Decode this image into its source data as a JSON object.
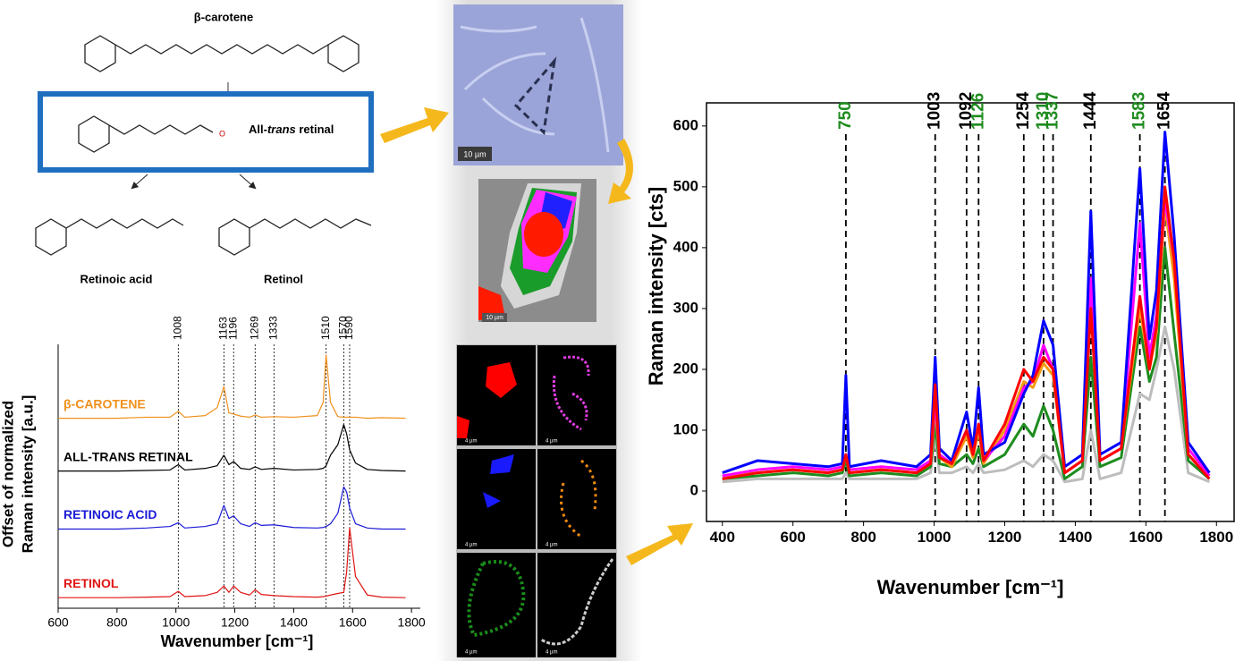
{
  "structures": {
    "beta_carotene": "β-carotene",
    "retinal_prefix": "All-",
    "retinal_italic": "trans",
    "retinal_suffix": " retinal",
    "retinoic_acid": "Retinoic acid",
    "retinol": "Retinol"
  },
  "images": {
    "brightfield_scale": "10 µm",
    "map_scale": "10 µm",
    "panel_scale": "4 µm"
  },
  "chart_data": [
    {
      "type": "line",
      "y_label": [
        "Offset of normalized",
        "Raman intensity [a.u.]"
      ],
      "x_label": "Wavenumber [cm⁻¹]",
      "xlim": [
        600,
        1830
      ],
      "xticks": [
        600,
        800,
        1000,
        1200,
        1400,
        1600,
        1800
      ],
      "ylim": [
        0,
        5
      ],
      "reference_lines": [
        1008,
        1163,
        1196,
        1269,
        1333,
        1510,
        1570,
        1590
      ],
      "x": [
        600,
        700,
        800,
        900,
        980,
        1008,
        1030,
        1100,
        1140,
        1163,
        1180,
        1196,
        1220,
        1250,
        1269,
        1290,
        1333,
        1400,
        1480,
        1500,
        1510,
        1525,
        1550,
        1570,
        1580,
        1590,
        1610,
        1650,
        1700,
        1780
      ],
      "series": [
        {
          "name": "β-CAROTENE",
          "color": "#f0901c",
          "values": [
            3.6,
            3.6,
            3.6,
            3.62,
            3.62,
            3.73,
            3.62,
            3.65,
            3.8,
            4.2,
            3.7,
            3.68,
            3.64,
            3.62,
            3.66,
            3.62,
            3.63,
            3.62,
            3.65,
            3.9,
            4.8,
            3.9,
            3.63,
            3.62,
            3.62,
            3.62,
            3.62,
            3.6,
            3.61,
            3.6
          ]
        },
        {
          "name": "ALL-TRANS RETINAL",
          "color": "#000000",
          "values": [
            2.6,
            2.6,
            2.6,
            2.61,
            2.62,
            2.72,
            2.62,
            2.65,
            2.7,
            2.9,
            2.72,
            2.78,
            2.65,
            2.63,
            2.68,
            2.63,
            2.65,
            2.62,
            2.63,
            2.65,
            2.7,
            2.9,
            3.1,
            3.48,
            3.3,
            3.0,
            2.75,
            2.63,
            2.61,
            2.6
          ]
        },
        {
          "name": "RETINOIC ACID",
          "color": "#1a1ad6",
          "values": [
            1.5,
            1.5,
            1.5,
            1.52,
            1.55,
            1.62,
            1.52,
            1.55,
            1.6,
            1.95,
            1.7,
            1.75,
            1.6,
            1.55,
            1.62,
            1.57,
            1.58,
            1.53,
            1.52,
            1.53,
            1.55,
            1.6,
            1.8,
            2.3,
            2.2,
            1.9,
            1.6,
            1.52,
            1.5,
            1.5
          ]
        },
        {
          "name": "RETINOL",
          "color": "#e01414",
          "values": [
            0.2,
            0.2,
            0.2,
            0.21,
            0.22,
            0.32,
            0.22,
            0.24,
            0.3,
            0.42,
            0.3,
            0.42,
            0.3,
            0.25,
            0.35,
            0.26,
            0.24,
            0.22,
            0.21,
            0.22,
            0.23,
            0.25,
            0.28,
            0.3,
            0.7,
            1.52,
            0.6,
            0.25,
            0.21,
            0.2
          ]
        }
      ]
    },
    {
      "type": "line",
      "y_label": [
        "Raman intensity [cts]"
      ],
      "x_label": "Wavenumber [cm⁻¹]",
      "xlim": [
        355,
        1850
      ],
      "xticks": [
        400,
        600,
        800,
        1000,
        1200,
        1400,
        1600,
        1800
      ],
      "ylim": [
        -50,
        638
      ],
      "yticks": [
        0,
        100,
        200,
        300,
        400,
        500,
        600
      ],
      "reference_lines": [
        {
          "value": 750,
          "color": "#1e8c1e"
        },
        {
          "value": 1003,
          "color": "#000000"
        },
        {
          "value": 1092,
          "color": "#000000"
        },
        {
          "value": 1126,
          "color": "#1e8c1e"
        },
        {
          "value": 1254,
          "color": "#000000"
        },
        {
          "value": 1310,
          "color": "#1e8c1e"
        },
        {
          "value": 1337,
          "color": "#1e8c1e"
        },
        {
          "value": 1444,
          "color": "#000000"
        },
        {
          "value": 1583,
          "color": "#1e8c1e"
        },
        {
          "value": 1654,
          "color": "#000000"
        }
      ],
      "x": [
        400,
        500,
        600,
        700,
        740,
        750,
        760,
        850,
        950,
        990,
        1003,
        1015,
        1050,
        1092,
        1110,
        1126,
        1140,
        1200,
        1254,
        1280,
        1310,
        1337,
        1370,
        1420,
        1444,
        1470,
        1530,
        1583,
        1610,
        1630,
        1654,
        1680,
        1720,
        1780
      ],
      "series": [
        {
          "color": "#bdbdbd",
          "values": [
            15,
            20,
            20,
            20,
            20,
            30,
            20,
            20,
            20,
            30,
            90,
            30,
            30,
            40,
            30,
            45,
            30,
            35,
            50,
            40,
            60,
            50,
            15,
            20,
            100,
            20,
            30,
            160,
            150,
            200,
            270,
            200,
            30,
            15
          ]
        },
        {
          "color": "#1e8c1e",
          "values": [
            20,
            25,
            30,
            25,
            30,
            50,
            25,
            30,
            25,
            40,
            110,
            45,
            40,
            60,
            45,
            70,
            40,
            60,
            110,
            90,
            140,
            100,
            20,
            40,
            220,
            40,
            55,
            270,
            180,
            220,
            400,
            260,
            50,
            20
          ]
        },
        {
          "color": "#f39c12",
          "values": [
            25,
            30,
            35,
            30,
            35,
            60,
            30,
            35,
            30,
            45,
            140,
            55,
            40,
            90,
            55,
            100,
            45,
            100,
            180,
            170,
            210,
            190,
            30,
            50,
            320,
            50,
            70,
            300,
            200,
            260,
            470,
            350,
            60,
            25
          ]
        },
        {
          "color": "#ff00ff",
          "values": [
            25,
            35,
            40,
            35,
            40,
            60,
            35,
            40,
            35,
            50,
            150,
            60,
            45,
            100,
            60,
            110,
            50,
            90,
            170,
            180,
            240,
            200,
            30,
            50,
            350,
            50,
            70,
            440,
            220,
            290,
            480,
            380,
            70,
            25
          ]
        },
        {
          "color": "#0000ff",
          "values": [
            30,
            50,
            45,
            40,
            45,
            190,
            40,
            50,
            40,
            60,
            220,
            70,
            50,
            130,
            70,
            170,
            60,
            80,
            160,
            190,
            280,
            240,
            40,
            60,
            460,
            60,
            80,
            530,
            250,
            330,
            590,
            420,
            80,
            30
          ]
        },
        {
          "color": "#ff0000",
          "values": [
            20,
            30,
            35,
            30,
            35,
            60,
            30,
            35,
            30,
            45,
            175,
            55,
            45,
            100,
            60,
            110,
            50,
            110,
            200,
            180,
            220,
            200,
            30,
            50,
            300,
            50,
            70,
            320,
            200,
            270,
            500,
            380,
            60,
            20
          ]
        }
      ]
    }
  ]
}
